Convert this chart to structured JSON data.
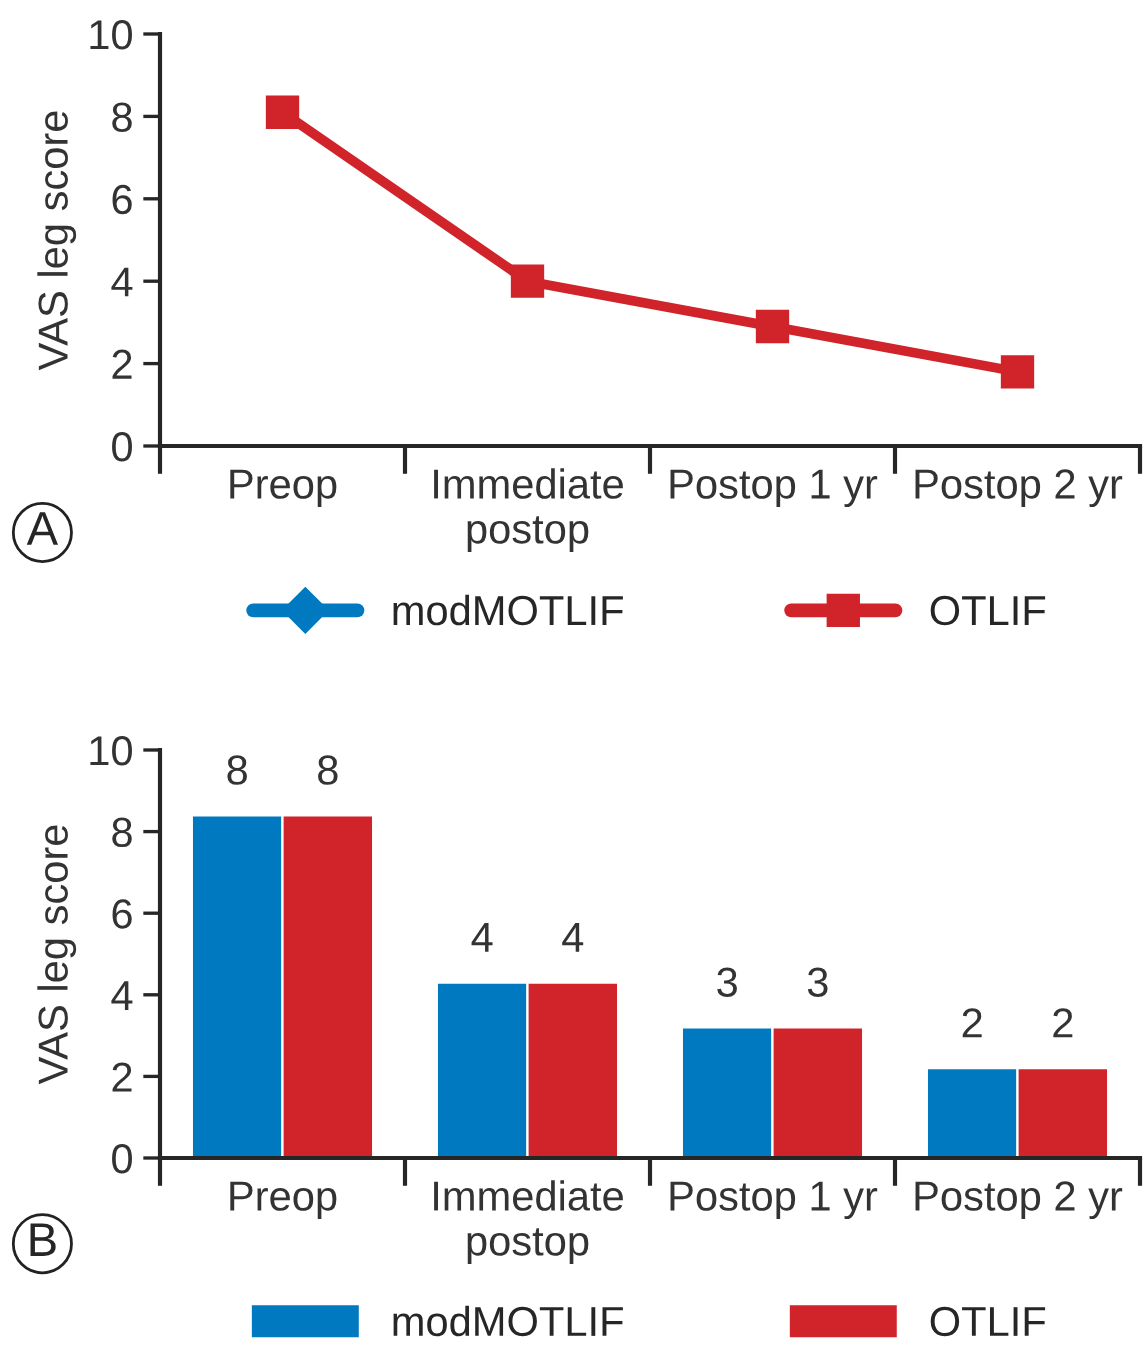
{
  "chart_data": [
    {
      "type": "line",
      "ylabel": "VAS leg score",
      "categories": [
        "Preop",
        "Immediate\npostop",
        "Postop 1 yr",
        "Postop 2 yr"
      ],
      "ylim": [
        0,
        10
      ],
      "yticks": [
        0,
        2,
        4,
        6,
        8,
        10
      ],
      "grid": false,
      "legend": "bottom",
      "line_style": "solid",
      "annotations": [
        "A"
      ],
      "series": [
        {
          "name": "modMOTLIF",
          "color": "#0079c1",
          "marker": "diamond",
          "values": [
            null,
            null,
            null,
            null
          ]
        },
        {
          "name": "OTLIF",
          "color": "#d0232a",
          "marker": "square",
          "values": [
            8.1,
            4.0,
            2.9,
            1.8
          ]
        }
      ]
    },
    {
      "type": "bar",
      "ylabel": "VAS leg score",
      "categories": [
        "Preop",
        "Immediate\npostop",
        "Postop 1 yr",
        "Postop 2 yr"
      ],
      "ylim": [
        0,
        10
      ],
      "yticks": [
        0,
        2,
        4,
        6,
        8,
        10
      ],
      "grid": false,
      "legend": "bottom",
      "annotations": [
        "B"
      ],
      "series": [
        {
          "name": "modMOTLIF",
          "color": "#0079c1",
          "values": [
            8.4,
            4.3,
            3.2,
            2.2
          ],
          "value_labels": [
            "8",
            "4",
            "3",
            "2"
          ]
        },
        {
          "name": "OTLIF",
          "color": "#d0232a",
          "values": [
            8.4,
            4.3,
            3.2,
            2.2
          ],
          "value_labels": [
            "8",
            "4",
            "3",
            "2"
          ]
        }
      ]
    }
  ]
}
